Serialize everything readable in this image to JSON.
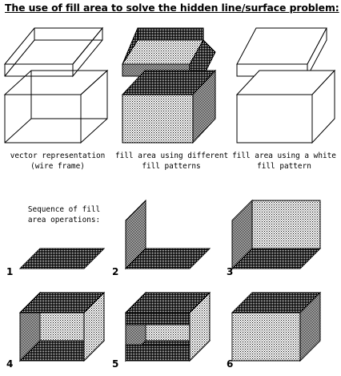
{
  "title": "The use of fill area to solve the hidden line/surface problem:",
  "captions": {
    "wire": [
      "vector representation",
      "(wire frame)"
    ],
    "patterns": [
      "fill area using different",
      "fill patterns"
    ],
    "white": [
      "fill area using a white",
      "fill pattern"
    ]
  },
  "sequence_label": [
    "Sequence of fill",
    "area operations:"
  ],
  "steps": [
    "1",
    "2",
    "3",
    "4",
    "5",
    "6"
  ],
  "colors": {
    "stroke": "#000000",
    "fill_white": "#ffffff"
  }
}
